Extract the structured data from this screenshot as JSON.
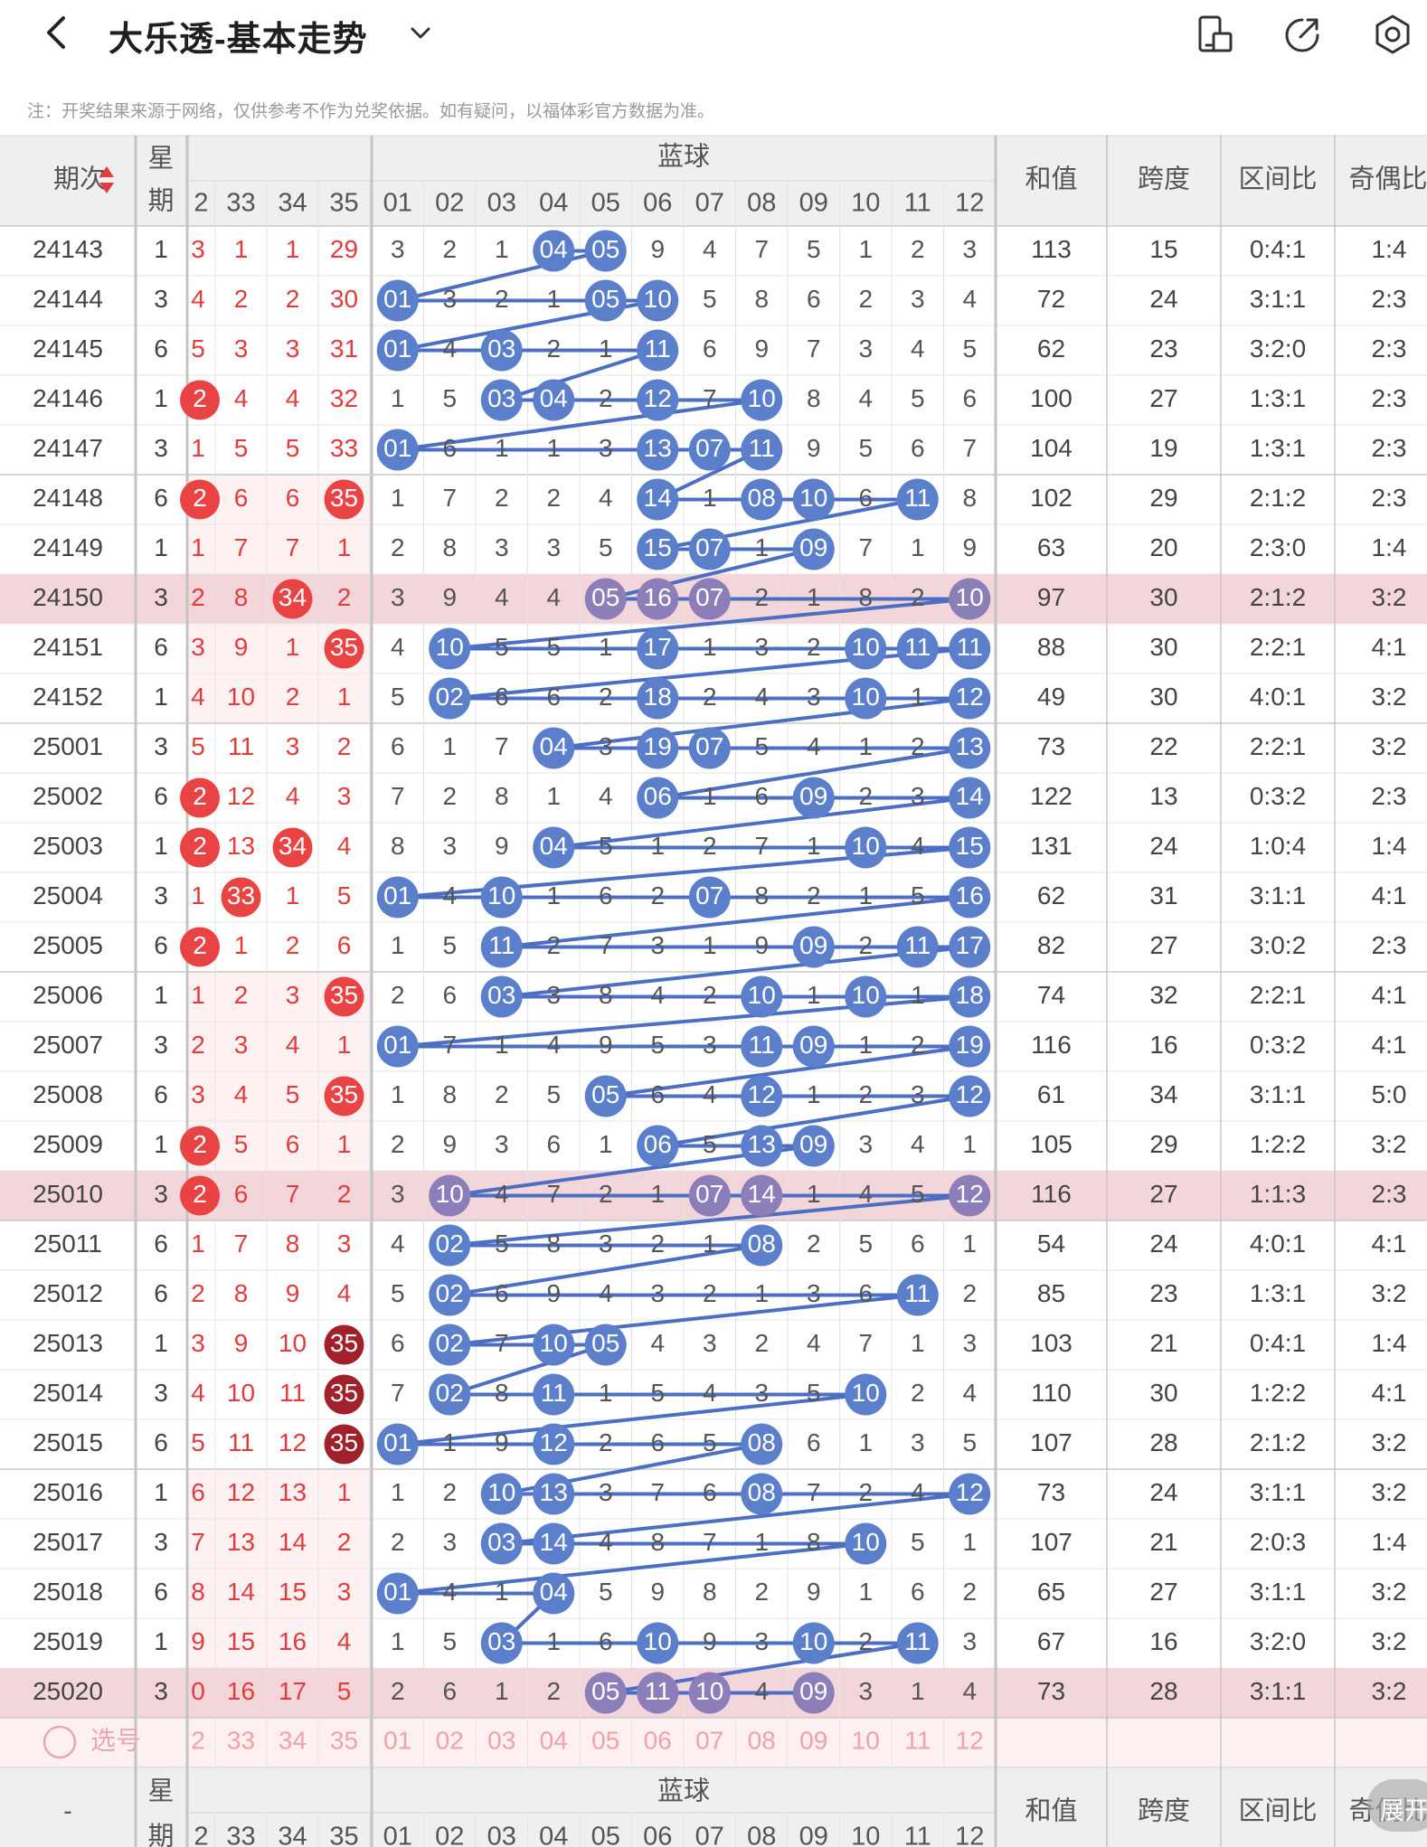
{
  "header": {
    "back_icon": "chevron-left-icon",
    "title": "大乐透-基本走势",
    "title_dropdown_icon": "chevron-down-icon",
    "actions": [
      {
        "name": "phone-icon"
      },
      {
        "name": "share-icon"
      },
      {
        "name": "settings-icon"
      }
    ]
  },
  "note": "注：开奖结果来源于网络，仅供参考不作为兑奖依据。如有疑问，以福体彩官方数据为准。",
  "table": {
    "issue_header": "期次",
    "week_header": [
      "星",
      "期"
    ],
    "blue_header": "蓝球",
    "front_cols": [
      "2",
      "33",
      "34",
      "35"
    ],
    "blue_cols": [
      "01",
      "02",
      "03",
      "04",
      "05",
      "06",
      "07",
      "08",
      "09",
      "10",
      "11",
      "12"
    ],
    "stat_headers": [
      "和值",
      "跨度",
      "区间比",
      "奇偶比"
    ],
    "select_label": "选号",
    "footer_issue": "-",
    "expand_label": "展开",
    "colors": {
      "blue_ball": "#5b7fcb",
      "blue_line": "#4c6fc4",
      "red_text": "#e23c3c",
      "red_ball": "#ea4343",
      "dark_red_ball": "#a1202a",
      "highlight_row": "#f3d6da",
      "header_bg": "#efefef"
    },
    "rows": [
      {
        "issue": "24143",
        "week": "1",
        "front": [
          "3",
          "1",
          "1",
          "29"
        ],
        "front_ball": [
          false,
          false,
          false,
          false
        ],
        "blue": [
          "3",
          "2",
          "1",
          "04",
          "05",
          "9",
          "4",
          "7",
          "5",
          "1",
          "2",
          "3"
        ],
        "sum": "113",
        "span": "15",
        "zone": "0:4:1",
        "odd": "1:4",
        "highlight": false
      },
      {
        "issue": "24144",
        "week": "3",
        "front": [
          "4",
          "2",
          "2",
          "30"
        ],
        "front_ball": [
          false,
          false,
          false,
          false
        ],
        "blue": [
          "01",
          "3",
          "2",
          "1",
          "05",
          "10",
          "5",
          "8",
          "6",
          "2",
          "3",
          "4"
        ],
        "sum": "72",
        "span": "24",
        "zone": "3:1:1",
        "odd": "2:3",
        "highlight": false
      },
      {
        "issue": "24145",
        "week": "6",
        "front": [
          "5",
          "3",
          "3",
          "31"
        ],
        "front_ball": [
          false,
          false,
          false,
          false
        ],
        "blue": [
          "01",
          "4",
          "03",
          "2",
          "1",
          "11",
          "6",
          "9",
          "7",
          "3",
          "4",
          "5"
        ],
        "sum": "62",
        "span": "23",
        "zone": "3:2:0",
        "odd": "2:3",
        "highlight": false
      },
      {
        "issue": "24146",
        "week": "1",
        "front": [
          "2",
          "4",
          "4",
          "32"
        ],
        "front_ball": [
          true,
          false,
          false,
          false
        ],
        "blue": [
          "1",
          "5",
          "03",
          "04",
          "2",
          "12",
          "7",
          "10",
          "8",
          "4",
          "5",
          "6"
        ],
        "sum": "100",
        "span": "27",
        "zone": "1:3:1",
        "odd": "2:3",
        "highlight": false
      },
      {
        "issue": "24147",
        "week": "3",
        "front": [
          "1",
          "5",
          "5",
          "33"
        ],
        "front_ball": [
          false,
          false,
          false,
          false
        ],
        "blue": [
          "01",
          "6",
          "1",
          "1",
          "3",
          "13",
          "07",
          "11",
          "9",
          "5",
          "6",
          "7"
        ],
        "sum": "104",
        "span": "19",
        "zone": "1:3:1",
        "odd": "2:3",
        "highlight": false
      },
      {
        "issue": "24148",
        "week": "6",
        "front": [
          "2",
          "6",
          "6",
          "35"
        ],
        "front_ball": [
          true,
          false,
          false,
          true
        ],
        "blue": [
          "1",
          "7",
          "2",
          "2",
          "4",
          "14",
          "1",
          "08",
          "10",
          "6",
          "11",
          "8"
        ],
        "sum": "102",
        "span": "29",
        "zone": "2:1:2",
        "odd": "2:3",
        "highlight": false
      },
      {
        "issue": "24149",
        "week": "1",
        "front": [
          "1",
          "7",
          "7",
          "1"
        ],
        "front_ball": [
          false,
          false,
          false,
          false
        ],
        "blue": [
          "2",
          "8",
          "3",
          "3",
          "5",
          "15",
          "07",
          "1",
          "09",
          "7",
          "1",
          "9"
        ],
        "sum": "63",
        "span": "20",
        "zone": "2:3:0",
        "odd": "1:4",
        "highlight": false
      },
      {
        "issue": "24150",
        "week": "3",
        "front": [
          "2",
          "8",
          "34",
          "2"
        ],
        "front_ball": [
          false,
          false,
          true,
          false
        ],
        "blue": [
          "3",
          "9",
          "4",
          "4",
          "05",
          "16",
          "07",
          "2",
          "1",
          "8",
          "2",
          "10"
        ],
        "sum": "97",
        "span": "30",
        "zone": "2:1:2",
        "odd": "3:2",
        "highlight": true
      },
      {
        "issue": "24151",
        "week": "6",
        "front": [
          "3",
          "9",
          "1",
          "35"
        ],
        "front_ball": [
          false,
          false,
          false,
          true
        ],
        "blue": [
          "4",
          "10",
          "5",
          "5",
          "1",
          "17",
          "1",
          "3",
          "2",
          "10",
          "11",
          "11"
        ],
        "sum": "88",
        "span": "30",
        "zone": "2:2:1",
        "odd": "4:1",
        "highlight": false
      },
      {
        "issue": "24152",
        "week": "1",
        "front": [
          "4",
          "10",
          "2",
          "1"
        ],
        "front_ball": [
          false,
          false,
          false,
          false
        ],
        "blue": [
          "5",
          "02",
          "6",
          "6",
          "2",
          "18",
          "2",
          "4",
          "3",
          "10",
          "1",
          "12"
        ],
        "sum": "49",
        "span": "30",
        "zone": "4:0:1",
        "odd": "3:2",
        "highlight": false
      },
      {
        "issue": "25001",
        "week": "3",
        "front": [
          "5",
          "11",
          "3",
          "2"
        ],
        "front_ball": [
          false,
          false,
          false,
          false
        ],
        "blue": [
          "6",
          "1",
          "7",
          "04",
          "3",
          "19",
          "07",
          "5",
          "4",
          "1",
          "2",
          "13"
        ],
        "sum": "73",
        "span": "22",
        "zone": "2:2:1",
        "odd": "3:2",
        "highlight": false
      },
      {
        "issue": "25002",
        "week": "6",
        "front": [
          "2",
          "12",
          "4",
          "3"
        ],
        "front_ball": [
          true,
          false,
          false,
          false
        ],
        "blue": [
          "7",
          "2",
          "8",
          "1",
          "4",
          "06",
          "1",
          "6",
          "09",
          "2",
          "3",
          "14"
        ],
        "sum": "122",
        "span": "13",
        "zone": "0:3:2",
        "odd": "2:3",
        "highlight": false
      },
      {
        "issue": "25003",
        "week": "1",
        "front": [
          "2",
          "13",
          "34",
          "4"
        ],
        "front_ball": [
          true,
          false,
          true,
          false
        ],
        "blue": [
          "8",
          "3",
          "9",
          "04",
          "5",
          "1",
          "2",
          "7",
          "1",
          "10",
          "4",
          "15"
        ],
        "sum": "131",
        "span": "24",
        "zone": "1:0:4",
        "odd": "1:4",
        "highlight": false
      },
      {
        "issue": "25004",
        "week": "3",
        "front": [
          "1",
          "33",
          "1",
          "5"
        ],
        "front_ball": [
          false,
          true,
          false,
          false
        ],
        "blue": [
          "01",
          "4",
          "10",
          "1",
          "6",
          "2",
          "07",
          "8",
          "2",
          "1",
          "5",
          "16"
        ],
        "sum": "62",
        "span": "31",
        "zone": "3:1:1",
        "odd": "4:1",
        "highlight": false
      },
      {
        "issue": "25005",
        "week": "6",
        "front": [
          "2",
          "1",
          "2",
          "6"
        ],
        "front_ball": [
          true,
          false,
          false,
          false
        ],
        "blue": [
          "1",
          "5",
          "11",
          "2",
          "7",
          "3",
          "1",
          "9",
          "09",
          "2",
          "11",
          "17"
        ],
        "sum": "82",
        "span": "27",
        "zone": "3:0:2",
        "odd": "2:3",
        "highlight": false
      },
      {
        "issue": "25006",
        "week": "1",
        "front": [
          "1",
          "2",
          "3",
          "35"
        ],
        "front_ball": [
          false,
          false,
          false,
          true
        ],
        "blue": [
          "2",
          "6",
          "03",
          "3",
          "8",
          "4",
          "2",
          "10",
          "1",
          "10",
          "1",
          "18"
        ],
        "sum": "74",
        "span": "32",
        "zone": "2:2:1",
        "odd": "4:1",
        "highlight": false
      },
      {
        "issue": "25007",
        "week": "3",
        "front": [
          "2",
          "3",
          "4",
          "1"
        ],
        "front_ball": [
          false,
          false,
          false,
          false
        ],
        "blue": [
          "01",
          "7",
          "1",
          "4",
          "9",
          "5",
          "3",
          "11",
          "09",
          "1",
          "2",
          "19"
        ],
        "sum": "116",
        "span": "16",
        "zone": "0:3:2",
        "odd": "4:1",
        "highlight": false
      },
      {
        "issue": "25008",
        "week": "6",
        "front": [
          "3",
          "4",
          "5",
          "35"
        ],
        "front_ball": [
          false,
          false,
          false,
          true
        ],
        "blue": [
          "1",
          "8",
          "2",
          "5",
          "05",
          "6",
          "4",
          "12",
          "1",
          "2",
          "3",
          "12"
        ],
        "sum": "61",
        "span": "34",
        "zone": "3:1:1",
        "odd": "5:0",
        "highlight": false
      },
      {
        "issue": "25009",
        "week": "1",
        "front": [
          "2",
          "5",
          "6",
          "1"
        ],
        "front_ball": [
          true,
          false,
          false,
          false
        ],
        "blue": [
          "2",
          "9",
          "3",
          "6",
          "1",
          "06",
          "5",
          "13",
          "09",
          "3",
          "4",
          "1"
        ],
        "sum": "105",
        "span": "29",
        "zone": "1:2:2",
        "odd": "3:2",
        "highlight": false
      },
      {
        "issue": "25010",
        "week": "3",
        "front": [
          "2",
          "6",
          "7",
          "2"
        ],
        "front_ball": [
          true,
          false,
          false,
          false
        ],
        "blue": [
          "3",
          "10",
          "4",
          "7",
          "2",
          "1",
          "07",
          "14",
          "1",
          "4",
          "5",
          "12"
        ],
        "sum": "116",
        "span": "27",
        "zone": "1:1:3",
        "odd": "2:3",
        "highlight": true
      },
      {
        "issue": "25011",
        "week": "6",
        "front": [
          "1",
          "7",
          "8",
          "3"
        ],
        "front_ball": [
          false,
          false,
          false,
          false
        ],
        "blue": [
          "4",
          "02",
          "5",
          "8",
          "3",
          "2",
          "1",
          "08",
          "2",
          "5",
          "6",
          "1"
        ],
        "sum": "54",
        "span": "24",
        "zone": "4:0:1",
        "odd": "4:1",
        "highlight": false
      },
      {
        "issue": "25012",
        "week": "6",
        "front": [
          "2",
          "8",
          "9",
          "4"
        ],
        "front_ball": [
          false,
          false,
          false,
          false
        ],
        "blue": [
          "5",
          "02",
          "6",
          "9",
          "4",
          "3",
          "2",
          "1",
          "3",
          "6",
          "11",
          "2"
        ],
        "sum": "85",
        "span": "23",
        "zone": "1:3:1",
        "odd": "3:2",
        "highlight": false
      },
      {
        "issue": "25013",
        "week": "1",
        "front": [
          "3",
          "9",
          "10",
          "35"
        ],
        "front_ball": [
          false,
          false,
          false,
          true
        ],
        "blue": [
          "6",
          "02",
          "7",
          "10",
          "05",
          "4",
          "3",
          "2",
          "4",
          "7",
          "1",
          "3"
        ],
        "sum": "103",
        "span": "21",
        "zone": "0:4:1",
        "odd": "1:4",
        "highlight": false
      },
      {
        "issue": "25014",
        "week": "3",
        "front": [
          "4",
          "10",
          "11",
          "35"
        ],
        "front_ball": [
          false,
          false,
          false,
          true
        ],
        "blue": [
          "7",
          "02",
          "8",
          "11",
          "1",
          "5",
          "4",
          "3",
          "5",
          "10",
          "2",
          "4"
        ],
        "sum": "110",
        "span": "30",
        "zone": "1:2:2",
        "odd": "4:1",
        "highlight": false
      },
      {
        "issue": "25015",
        "week": "6",
        "front": [
          "5",
          "11",
          "12",
          "35"
        ],
        "front_ball": [
          false,
          false,
          false,
          true
        ],
        "blue": [
          "01",
          "1",
          "9",
          "12",
          "2",
          "6",
          "5",
          "08",
          "6",
          "1",
          "3",
          "5"
        ],
        "sum": "107",
        "span": "28",
        "zone": "2:1:2",
        "odd": "3:2",
        "highlight": false
      },
      {
        "issue": "25016",
        "week": "1",
        "front": [
          "6",
          "12",
          "13",
          "1"
        ],
        "front_ball": [
          false,
          false,
          false,
          false
        ],
        "blue": [
          "1",
          "2",
          "10",
          "13",
          "3",
          "7",
          "6",
          "08",
          "7",
          "2",
          "4",
          "12"
        ],
        "sum": "73",
        "span": "24",
        "zone": "3:1:1",
        "odd": "3:2",
        "highlight": false
      },
      {
        "issue": "25017",
        "week": "3",
        "front": [
          "7",
          "13",
          "14",
          "2"
        ],
        "front_ball": [
          false,
          false,
          false,
          false
        ],
        "blue": [
          "2",
          "3",
          "03",
          "14",
          "4",
          "8",
          "7",
          "1",
          "8",
          "10",
          "5",
          "1"
        ],
        "sum": "107",
        "span": "21",
        "zone": "2:0:3",
        "odd": "1:4",
        "highlight": false
      },
      {
        "issue": "25018",
        "week": "6",
        "front": [
          "8",
          "14",
          "15",
          "3"
        ],
        "front_ball": [
          false,
          false,
          false,
          false
        ],
        "blue": [
          "01",
          "4",
          "1",
          "04",
          "5",
          "9",
          "8",
          "2",
          "9",
          "1",
          "6",
          "2"
        ],
        "sum": "65",
        "span": "27",
        "zone": "3:1:1",
        "odd": "3:2",
        "highlight": false
      },
      {
        "issue": "25019",
        "week": "1",
        "front": [
          "9",
          "15",
          "16",
          "4"
        ],
        "front_ball": [
          false,
          false,
          false,
          false
        ],
        "blue": [
          "1",
          "5",
          "03",
          "1",
          "6",
          "10",
          "9",
          "3",
          "10",
          "2",
          "11",
          "3"
        ],
        "sum": "67",
        "span": "16",
        "zone": "3:2:0",
        "odd": "3:2",
        "highlight": false
      },
      {
        "issue": "25020",
        "week": "3",
        "front": [
          "0",
          "16",
          "17",
          "5"
        ],
        "front_ball": [
          false,
          false,
          false,
          false
        ],
        "blue": [
          "2",
          "6",
          "1",
          "2",
          "05",
          "11",
          "10",
          "4",
          "09",
          "3",
          "1",
          "4"
        ],
        "sum": "73",
        "span": "28",
        "zone": "3:1:1",
        "odd": "3:2",
        "highlight": true
      }
    ]
  }
}
